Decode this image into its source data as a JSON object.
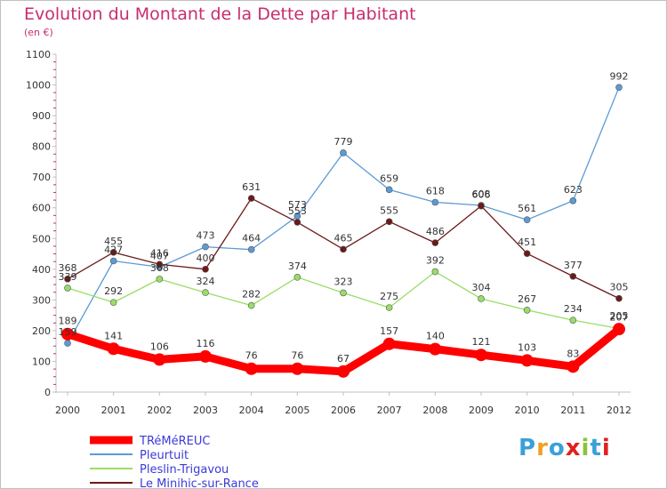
{
  "chart_data": {
    "type": "line",
    "title": "Evolution du Montant de la Dette par Habitant",
    "subtitle": "(en €)",
    "x": [
      "2000",
      "2001",
      "2002",
      "2003",
      "2004",
      "2005",
      "2006",
      "2007",
      "2008",
      "2009",
      "2010",
      "2011",
      "2012"
    ],
    "ylim": [
      0,
      1100
    ],
    "yticks": [
      0,
      100,
      200,
      300,
      400,
      500,
      600,
      700,
      800,
      900,
      1000,
      1100
    ],
    "grid": false,
    "legend_position": "bottom-left",
    "series": [
      {
        "name": "TRéMéREUC",
        "color": "#ff0000",
        "values": [
          189,
          141,
          106,
          116,
          76,
          76,
          67,
          157,
          140,
          121,
          103,
          83,
          205
        ]
      },
      {
        "name": "Pleurtuit",
        "color": "#5b9bd5",
        "values": [
          159,
          427,
          407,
          473,
          464,
          573,
          779,
          659,
          618,
          608,
          561,
          623,
          992
        ]
      },
      {
        "name": "Pleslin-Trigavou",
        "color": "#99dd66",
        "values": [
          339,
          292,
          368,
          324,
          282,
          374,
          323,
          275,
          392,
          304,
          267,
          234,
          207
        ]
      },
      {
        "name": "Le Minihic-sur-Rance",
        "color": "#6b1a1a",
        "values": [
          368,
          455,
          416,
          400,
          631,
          553,
          465,
          555,
          486,
          606,
          451,
          377,
          305
        ]
      }
    ]
  },
  "brand": {
    "letters": [
      "P",
      "r",
      "o",
      "x",
      "i",
      "t",
      "i"
    ],
    "colors": [
      "#3aa0d8",
      "#f0a020",
      "#3aa0d8",
      "#e02020",
      "#8ac23a",
      "#3aa0d8",
      "#e02020"
    ]
  }
}
